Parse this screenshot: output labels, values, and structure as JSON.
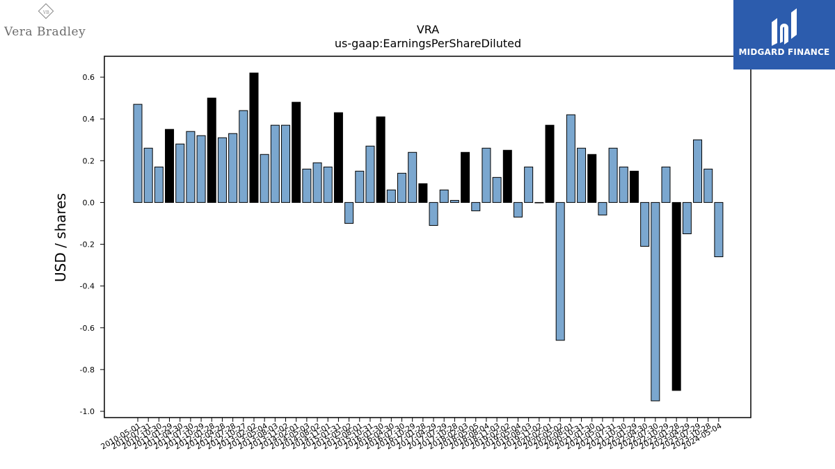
{
  "chart_data": {
    "type": "bar",
    "title": "VRA",
    "subtitle": "us-gaap:EarningsPerShareDiluted",
    "ylabel": "USD / shares",
    "xlabel": "",
    "ylim": [
      -1.03,
      0.7
    ],
    "yticks": [
      -1.0,
      -0.8,
      -0.6,
      -0.4,
      -0.2,
      0.0,
      0.2,
      0.4,
      0.6
    ],
    "grid": false,
    "colors": {
      "default": "#7ba7cf",
      "highlight": "#000000"
    },
    "categories": [
      "2010-05-01",
      "2010-07-31",
      "2010-10-30",
      "2011-01-29",
      "2011-04-30",
      "2011-07-30",
      "2011-10-29",
      "2012-01-28",
      "2012-04-28",
      "2012-07-28",
      "2012-10-27",
      "2013-02-02",
      "2013-05-04",
      "2013-08-03",
      "2013-11-02",
      "2014-02-01",
      "2014-05-03",
      "2014-08-02",
      "2014-11-01",
      "2015-01-31",
      "2015-05-02",
      "2015-08-01",
      "2015-10-31",
      "2016-01-30",
      "2016-04-30",
      "2016-07-30",
      "2016-10-29",
      "2017-01-28",
      "2017-04-29",
      "2017-07-29",
      "2017-10-28",
      "2018-02-03",
      "2018-05-05",
      "2018-08-04",
      "2018-11-03",
      "2019-02-02",
      "2019-05-04",
      "2019-08-03",
      "2019-11-02",
      "2020-02-01",
      "2020-05-02",
      "2020-08-01",
      "2020-10-31",
      "2021-01-30",
      "2021-05-01",
      "2021-07-31",
      "2021-10-30",
      "2022-01-29",
      "2022-04-30",
      "2022-07-30",
      "2022-10-29",
      "2023-01-28",
      "2023-04-29",
      "2023-07-29",
      "2023-10-28",
      "2024-05-04"
    ],
    "values": [
      0.47,
      0.26,
      0.17,
      0.35,
      0.28,
      0.34,
      0.32,
      0.5,
      0.31,
      0.33,
      0.44,
      0.62,
      0.23,
      0.37,
      0.37,
      0.48,
      0.16,
      0.19,
      0.17,
      0.43,
      -0.1,
      0.15,
      0.27,
      0.41,
      0.06,
      0.14,
      0.24,
      0.09,
      -0.11,
      0.06,
      0.01,
      0.24,
      -0.04,
      0.26,
      0.12,
      0.25,
      -0.07,
      0.17,
      0.0,
      0.37,
      -0.66,
      0.42,
      0.26,
      0.23,
      -0.06,
      0.26,
      0.17,
      0.15,
      -0.21,
      -0.95,
      0.17,
      -0.9,
      -0.15,
      0.3,
      0.16,
      -0.26
    ],
    "highlighted": [
      0,
      0,
      0,
      1,
      0,
      0,
      0,
      1,
      0,
      0,
      0,
      1,
      0,
      0,
      0,
      1,
      0,
      0,
      0,
      1,
      0,
      0,
      0,
      1,
      0,
      0,
      0,
      1,
      0,
      0,
      0,
      1,
      0,
      0,
      0,
      1,
      0,
      0,
      0,
      1,
      0,
      0,
      0,
      1,
      0,
      0,
      0,
      1,
      0,
      0,
      0,
      1,
      0,
      0,
      0,
      0
    ]
  },
  "logos": {
    "left": {
      "name": "Vera Bradley",
      "monogram": "VB"
    },
    "right": {
      "name": "MIDGARD FINANCE"
    }
  }
}
